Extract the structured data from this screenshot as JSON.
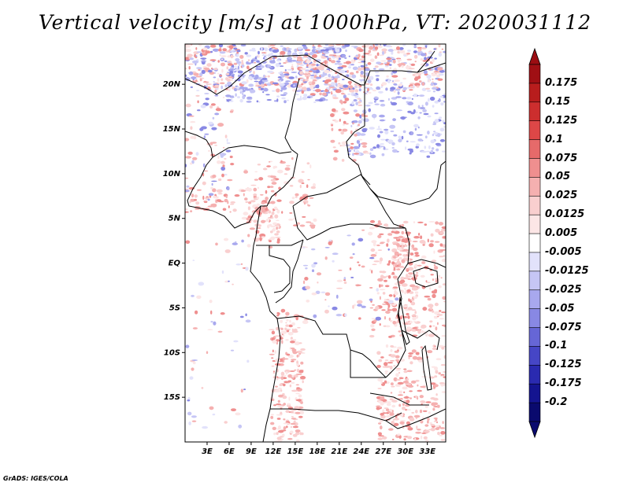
{
  "title": "Vertical velocity [m/s] at 1000hPa, VT: 2020031112",
  "footer": "GrADS: IGES/COLA",
  "map": {
    "lat_range": [
      -20,
      24.5
    ],
    "lon_range": [
      0,
      35.5
    ],
    "lat_ticks": [
      {
        "value": 20,
        "label": "20N"
      },
      {
        "value": 15,
        "label": "15N"
      },
      {
        "value": 10,
        "label": "10N"
      },
      {
        "value": 5,
        "label": "5N"
      },
      {
        "value": 0,
        "label": "EQ"
      },
      {
        "value": -5,
        "label": "5S"
      },
      {
        "value": -10,
        "label": "10S"
      },
      {
        "value": -15,
        "label": "15S"
      }
    ],
    "lon_ticks": [
      {
        "value": 3,
        "label": "3E"
      },
      {
        "value": 6,
        "label": "6E"
      },
      {
        "value": 9,
        "label": "9E"
      },
      {
        "value": 12,
        "label": "12E"
      },
      {
        "value": 15,
        "label": "15E"
      },
      {
        "value": 18,
        "label": "18E"
      },
      {
        "value": 21,
        "label": "21E"
      },
      {
        "value": 24,
        "label": "24E"
      },
      {
        "value": 27,
        "label": "27E"
      },
      {
        "value": 30,
        "label": "30E"
      },
      {
        "value": 33,
        "label": "33E"
      }
    ]
  },
  "colorbar": {
    "levels": [
      "0.175",
      "0.15",
      "0.125",
      "0.1",
      "0.075",
      "0.05",
      "0.025",
      "0.0125",
      "0.005",
      "-0.005",
      "-0.0125",
      "-0.025",
      "-0.05",
      "-0.075",
      "-0.1",
      "-0.125",
      "-0.175",
      "-0.2"
    ],
    "colors": [
      "#a00f14",
      "#b81d1d",
      "#cc2e2e",
      "#dd4747",
      "#e66a6a",
      "#ef8f8f",
      "#f5b0b0",
      "#f9cfcf",
      "#fce6e6",
      "#ffffff",
      "#e2e2fb",
      "#c6c6f5",
      "#a8a8ee",
      "#8888e4",
      "#6666d6",
      "#4646c6",
      "#2a2ab0",
      "#141490",
      "#0a0a6e"
    ],
    "top_arrow_color": "#9b0d12",
    "bottom_arrow_color": "#0a0a6e"
  }
}
